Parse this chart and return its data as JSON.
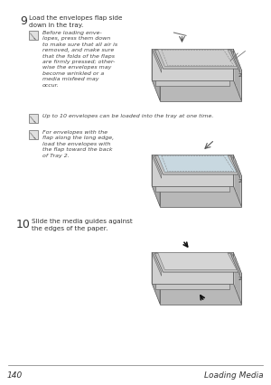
{
  "bg_color": "#ffffff",
  "text_color": "#333333",
  "italic_color": "#444444",
  "footer_page_num": "140",
  "footer_title": "Loading Media",
  "step9_num": "9",
  "step9_text": "Load the envelopes flap side\ndown in the tray.",
  "note1_text": "Before loading enve-\nlopes, press them down\nto make sure that all air is\nremoved, and make sure\nthat the folds of the flaps\nare firmly pressed; other-\nwise the envelopes may\nbecome wrinkled or a\nmedia misfeed may\noccur.",
  "note2_text": "Up to 10 envelopes can be loaded into the tray at one time.",
  "note3_text": "For envelopes with the\nflap along the long edge,\nload the envelopes with\nthe flap toward the back\nof Tray 2.",
  "step10_num": "10",
  "step10_text": "Slide the media guides against\nthe edges of the paper."
}
